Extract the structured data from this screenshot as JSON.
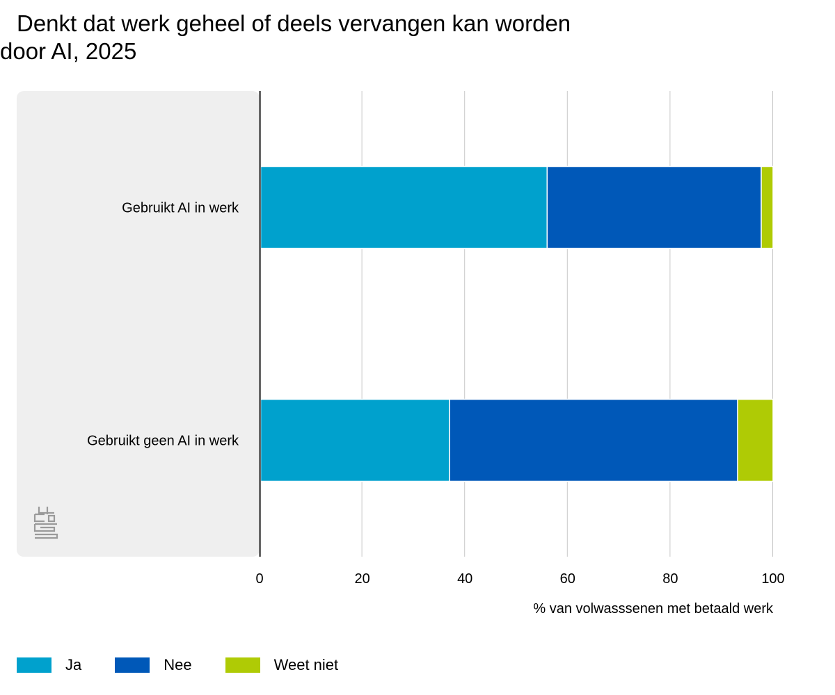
{
  "chart_data": {
    "type": "bar",
    "orientation": "horizontal",
    "stacked": true,
    "title_line1": "Denkt dat werk geheel of deels vervangen kan worden",
    "title_line2": "door AI, 2025",
    "categories": [
      "Gebruikt AI in werk",
      "Gebruikt geen AI in werk"
    ],
    "series": [
      {
        "name": "Ja",
        "color": "#00a1cd",
        "values": [
          56,
          37
        ]
      },
      {
        "name": "Nee",
        "color": "#0058b8",
        "values": [
          41.7,
          56.1
        ]
      },
      {
        "name": "Weet niet",
        "color": "#afcb05",
        "values": [
          2.3,
          6.9
        ]
      }
    ],
    "xlabel": "% van volwasssenen met betaald werk",
    "xlim": [
      0,
      100
    ],
    "xticks": [
      "0",
      "20",
      "40",
      "60",
      "80",
      "100"
    ],
    "grid": true,
    "legend_position": "bottom-left"
  },
  "icons": {
    "logo": "cbs-logo-icon"
  }
}
